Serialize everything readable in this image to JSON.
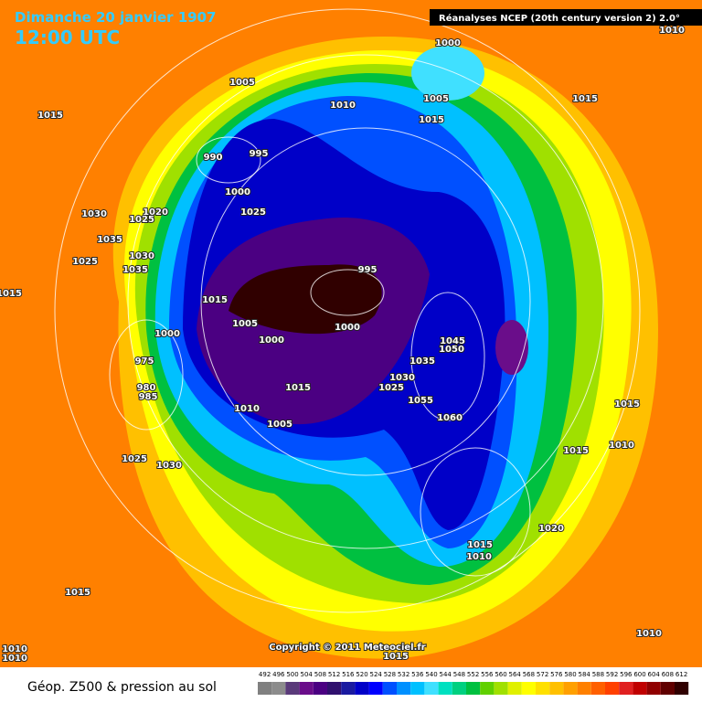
{
  "header": {
    "title": "Dimanche 20 janvier 1907",
    "time": "12:00 UTC",
    "source": "Réanalyses NCEP (20th century version 2) 2.0°"
  },
  "isobar_labels": [
    1010,
    1000,
    1005,
    1010,
    1005,
    1015,
    1015,
    1015,
    990,
    995,
    1000,
    1025,
    1030,
    1025,
    1020,
    1035,
    1030,
    1025,
    1035,
    1015,
    995,
    1015,
    1005,
    1000,
    1000,
    1000,
    975,
    980,
    985,
    1015,
    1010,
    1005,
    1045,
    1050,
    1035,
    1030,
    1025,
    1055,
    1060,
    1015,
    1010,
    1015,
    1025,
    1030,
    1020,
    1015,
    1010,
    1015,
    1010,
    1010,
    1010,
    1015
  ],
  "copyright": "Copyright © 2011 Meteociel.fr",
  "legend": {
    "title": "Géop. Z500 & pression au sol",
    "levels": [
      492,
      496,
      500,
      504,
      508,
      512,
      516,
      520,
      524,
      528,
      532,
      536,
      540,
      544,
      548,
      552,
      556,
      560,
      564,
      568,
      572,
      576,
      580,
      584,
      588,
      592,
      596,
      600,
      604,
      608,
      612
    ],
    "colors": [
      "#808080",
      "#8c8c8c",
      "#5a3a7a",
      "#6a0d8a",
      "#4b0082",
      "#30106e",
      "#1a1aa0",
      "#0000c8",
      "#0000ff",
      "#0050ff",
      "#0090ff",
      "#00c0ff",
      "#40e0ff",
      "#00e0c0",
      "#00d080",
      "#00c040",
      "#60d000",
      "#a0e000",
      "#e0f000",
      "#ffff00",
      "#ffe000",
      "#ffc000",
      "#ffa000",
      "#ff8000",
      "#ff6000",
      "#ff4000",
      "#e02020",
      "#c00000",
      "#900000",
      "#600000",
      "#300000"
    ]
  }
}
